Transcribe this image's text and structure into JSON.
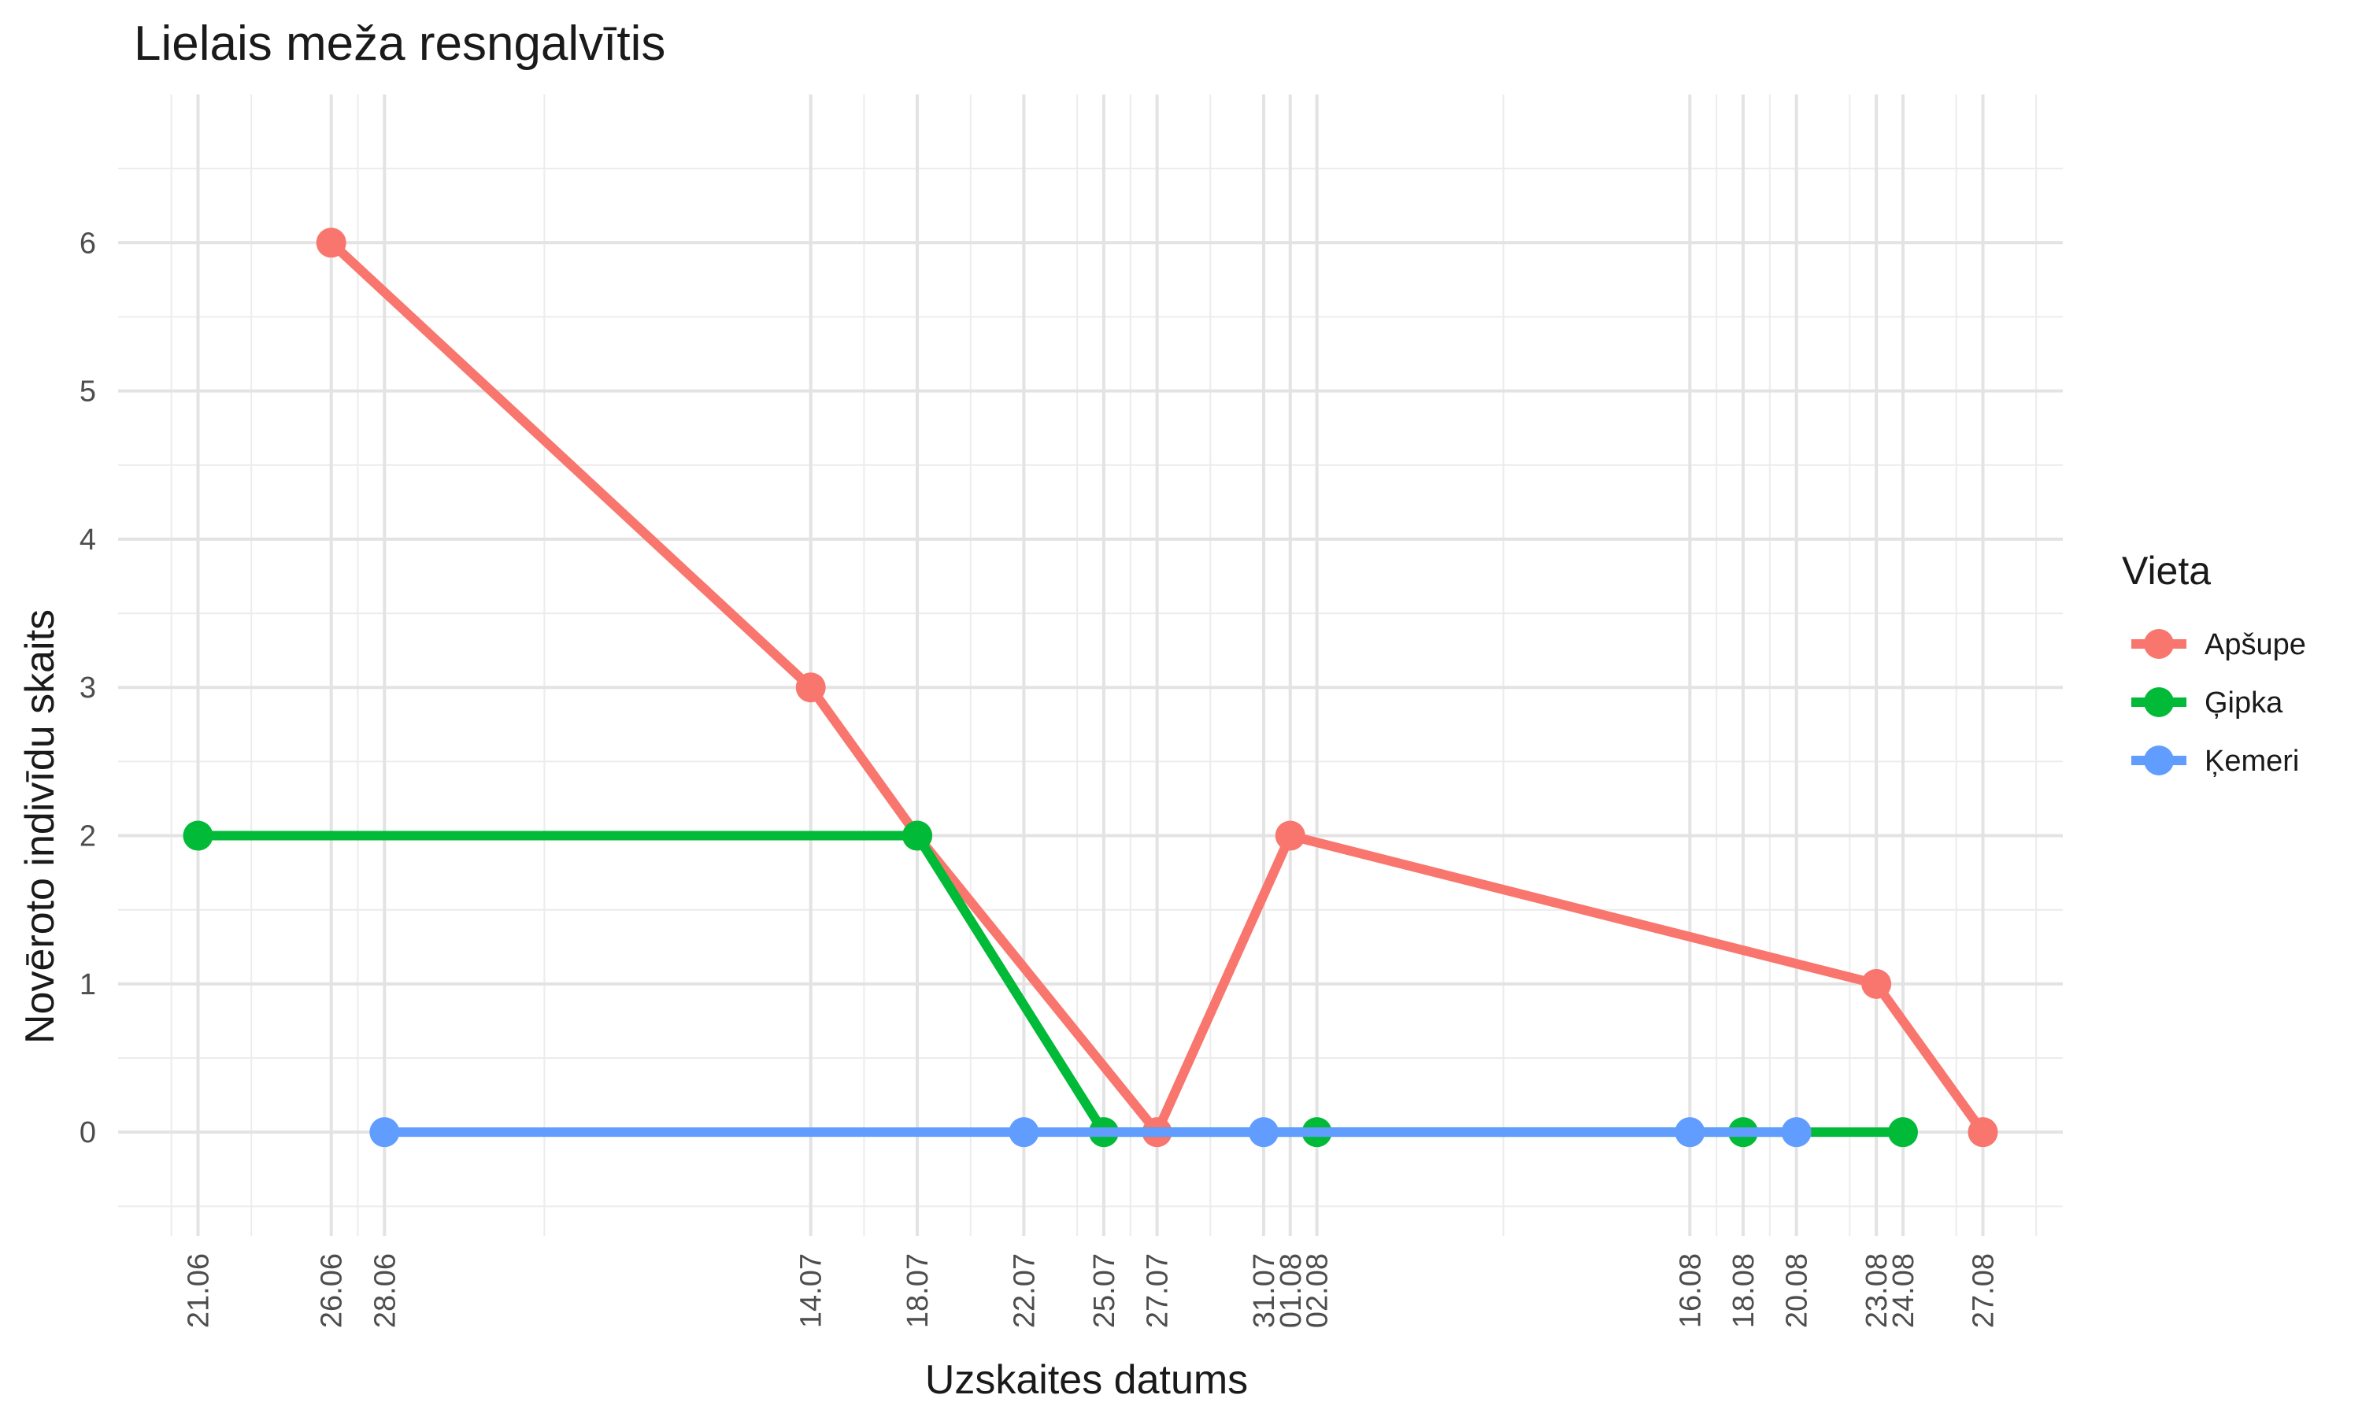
{
  "chart_data": {
    "type": "line",
    "title": "Lielais meža resngalvītis",
    "xlabel": "Uzskaites datums",
    "ylabel": "Novēroto indivīdu skaits",
    "ylim": [
      -0.7,
      7.0
    ],
    "y_ticks": [
      0,
      1,
      2,
      3,
      4,
      5,
      6
    ],
    "x_ticks": [
      {
        "date": "2023-06-21",
        "label": "21.06"
      },
      {
        "date": "2023-06-26",
        "label": "26.06"
      },
      {
        "date": "2023-06-28",
        "label": "28.06"
      },
      {
        "date": "2023-07-14",
        "label": "14.07"
      },
      {
        "date": "2023-07-18",
        "label": "18.07"
      },
      {
        "date": "2023-07-22",
        "label": "22.07"
      },
      {
        "date": "2023-07-25",
        "label": "25.07"
      },
      {
        "date": "2023-07-27",
        "label": "27.07"
      },
      {
        "date": "2023-07-31",
        "label": "31.07"
      },
      {
        "date": "2023-08-01",
        "label": "01.08"
      },
      {
        "date": "2023-08-02",
        "label": "02.08"
      },
      {
        "date": "2023-08-16",
        "label": "16.08"
      },
      {
        "date": "2023-08-18",
        "label": "18.08"
      },
      {
        "date": "2023-08-20",
        "label": "20.08"
      },
      {
        "date": "2023-08-23",
        "label": "23.08"
      },
      {
        "date": "2023-08-24",
        "label": "24.08"
      },
      {
        "date": "2023-08-27",
        "label": "27.08"
      }
    ],
    "x_minor_grid": [
      "2023-06-20",
      "2023-06-23",
      "2023-06-27",
      "2023-07-04",
      "2023-07-16",
      "2023-07-20",
      "2023-07-24",
      "2023-07-26",
      "2023-07-29",
      "2023-08-09",
      "2023-08-17",
      "2023-08-19",
      "2023-08-22",
      "2023-08-26",
      "2023-08-29"
    ],
    "grid": true,
    "legend_position": "right",
    "legend_title": "Vieta",
    "series": [
      {
        "name": "Apšupe",
        "color": "#F8766D",
        "points": [
          [
            "2023-06-26",
            6
          ],
          [
            "2023-07-14",
            3
          ],
          [
            "2023-07-18",
            2
          ],
          [
            "2023-07-27",
            0
          ],
          [
            "2023-08-01",
            2
          ],
          [
            "2023-08-23",
            1
          ],
          [
            "2023-08-27",
            0
          ]
        ]
      },
      {
        "name": "Ģipka",
        "color": "#00BA38",
        "points": [
          [
            "2023-06-21",
            2
          ],
          [
            "2023-07-18",
            2
          ],
          [
            "2023-07-25",
            0
          ],
          [
            "2023-08-02",
            0
          ],
          [
            "2023-08-18",
            0
          ],
          [
            "2023-08-24",
            0
          ]
        ]
      },
      {
        "name": "Ķemeri",
        "color": "#619CFF",
        "points": [
          [
            "2023-06-28",
            0
          ],
          [
            "2023-07-22",
            0
          ],
          [
            "2023-07-31",
            0
          ],
          [
            "2023-08-16",
            0
          ],
          [
            "2023-08-20",
            0
          ]
        ]
      }
    ]
  }
}
